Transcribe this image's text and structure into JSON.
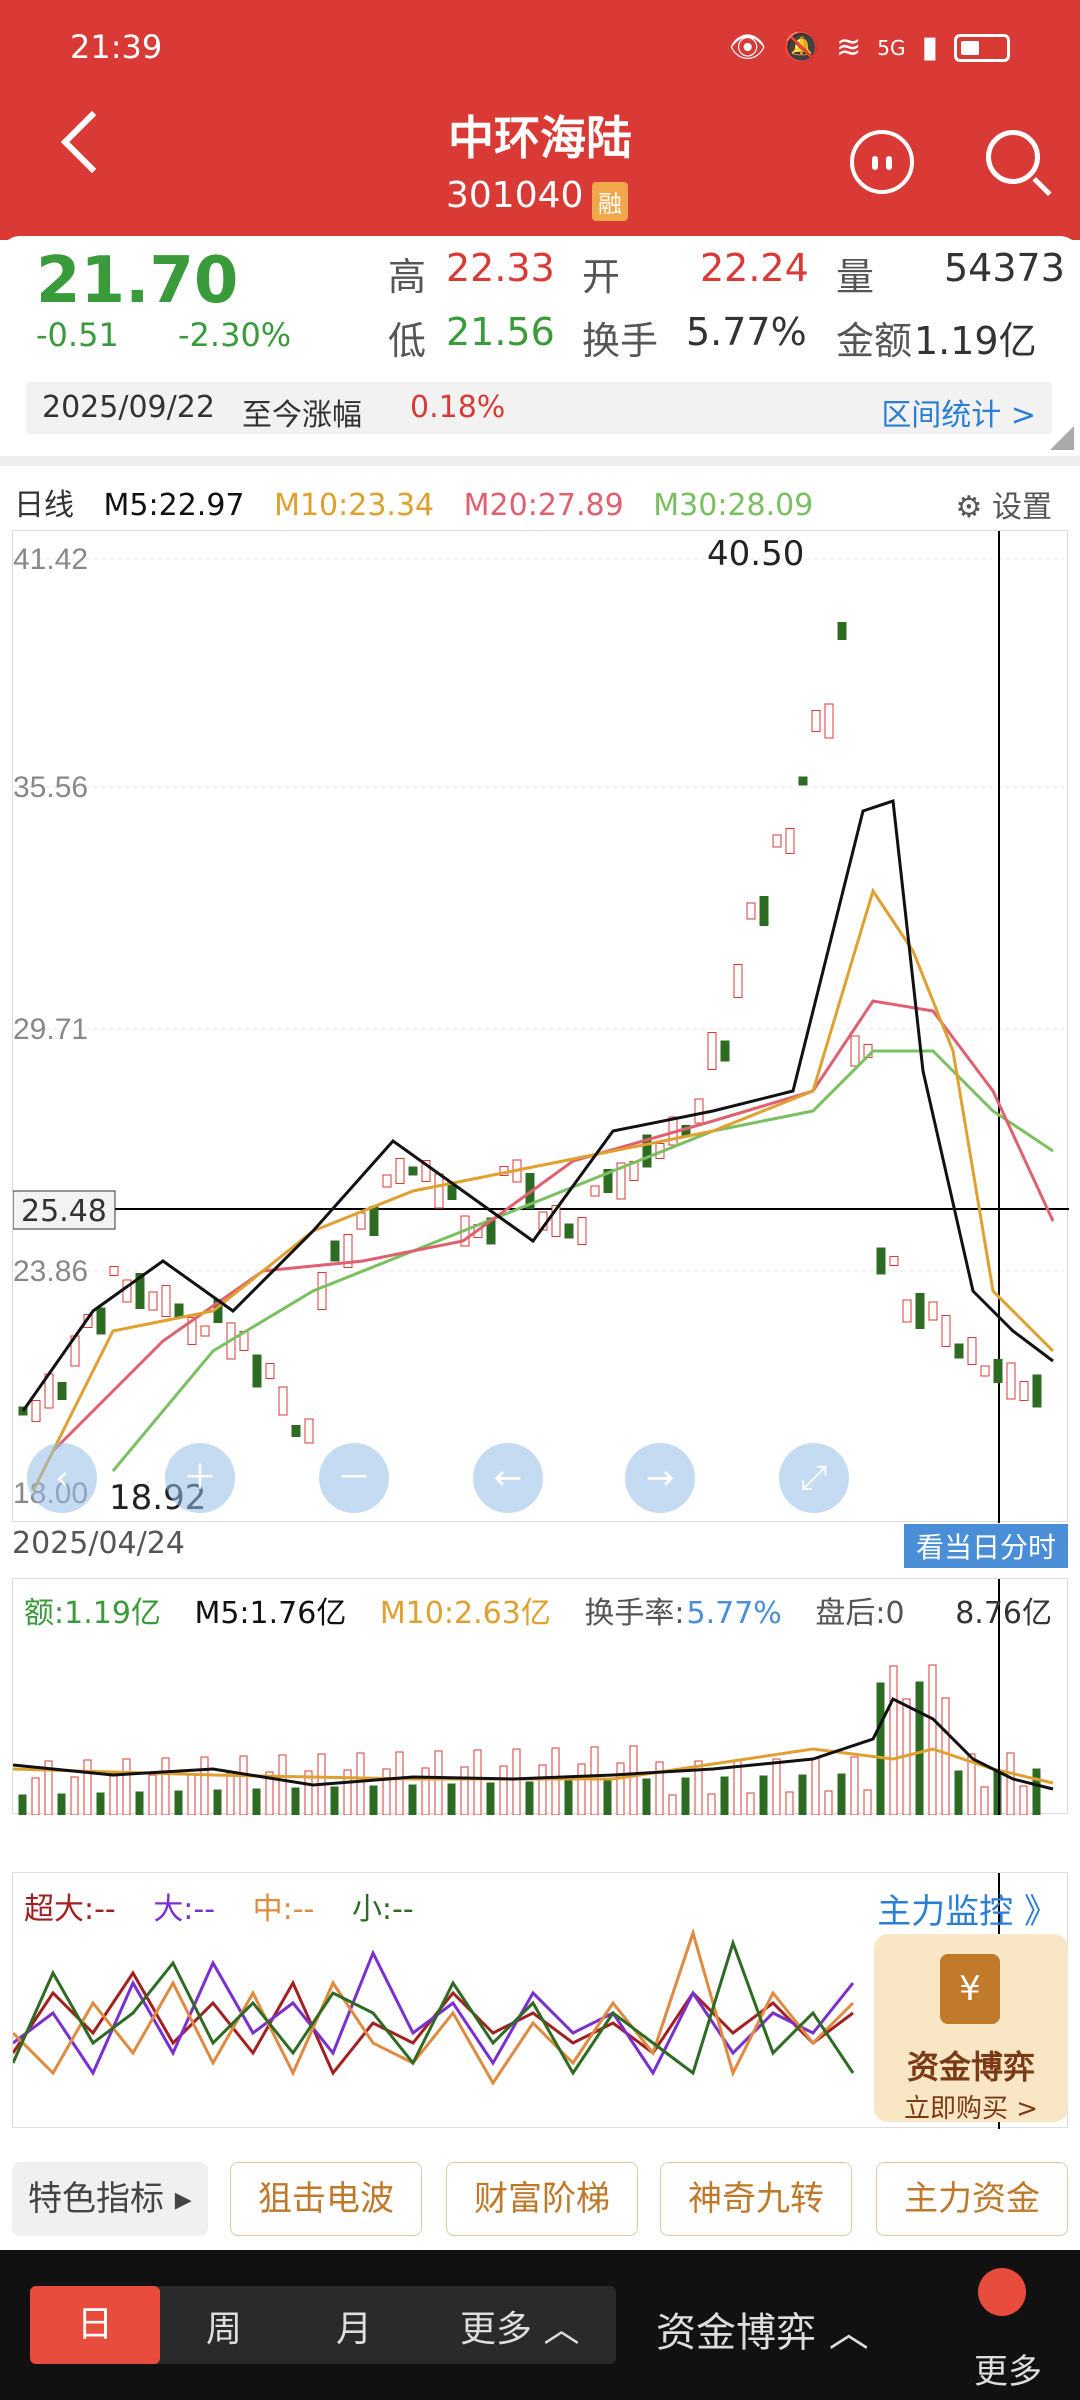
{
  "status": {
    "time": "21:39",
    "network": "5G"
  },
  "header": {
    "title": "中环海陆",
    "code": "301040",
    "badge": "融"
  },
  "quote": {
    "price": "21.70",
    "change": "-0.51",
    "change_pct": "-2.30%",
    "high_label": "高",
    "high": "22.33",
    "open_label": "开",
    "open": "22.24",
    "volume_label": "量",
    "volume": "54373",
    "low_label": "低",
    "low": "21.56",
    "turnover_label": "换手",
    "turnover": "5.77%",
    "amount_label": "金额",
    "amount": "1.19亿"
  },
  "range": {
    "date": "2025/09/22",
    "label": "至今涨幅",
    "value": "0.18%",
    "stats": "区间统计 >"
  },
  "kline": {
    "period": "日线",
    "m5": "M5:22.97",
    "m10": "M10:23.34",
    "m20": "M20:27.89",
    "m30": "M30:28.09",
    "settings": "设置",
    "y_ticks": [
      "41.42",
      "35.56",
      "29.71",
      "23.86",
      "18.00"
    ],
    "crosshair_price": "25.48",
    "max_label": "40.50",
    "min_label": "18.92",
    "start_date": "2025/04/24",
    "intraday_button": "看当日分时"
  },
  "volume": {
    "amount": "额:1.19亿",
    "m5": "M5:1.76亿",
    "m10": "M10:2.63亿",
    "turnover_label": "换手率:",
    "turnover": "5.77%",
    "after": "盘后:0",
    "max": "8.76亿"
  },
  "flow": {
    "super": "超大:--",
    "big": "大:--",
    "mid": "中:--",
    "small": "小:--",
    "monitor": "主力监控 》"
  },
  "promo": {
    "title": "资金博弈",
    "cta": "立即购买 >"
  },
  "toolbar": {
    "first": "特色指标",
    "items": [
      "狙击电波",
      "财富阶梯",
      "神奇九转",
      "主力资金"
    ]
  },
  "bottom_nav": {
    "day": "日",
    "week": "周",
    "month": "月",
    "more": "更多 ︿",
    "fund": "资金博弈 ︿",
    "more_right": "更多"
  },
  "colors": {
    "red": "#d93a35",
    "green": "#3a9b3a",
    "m10": "#e0a030",
    "m20": "#e06070",
    "m30": "#7ac060"
  }
}
